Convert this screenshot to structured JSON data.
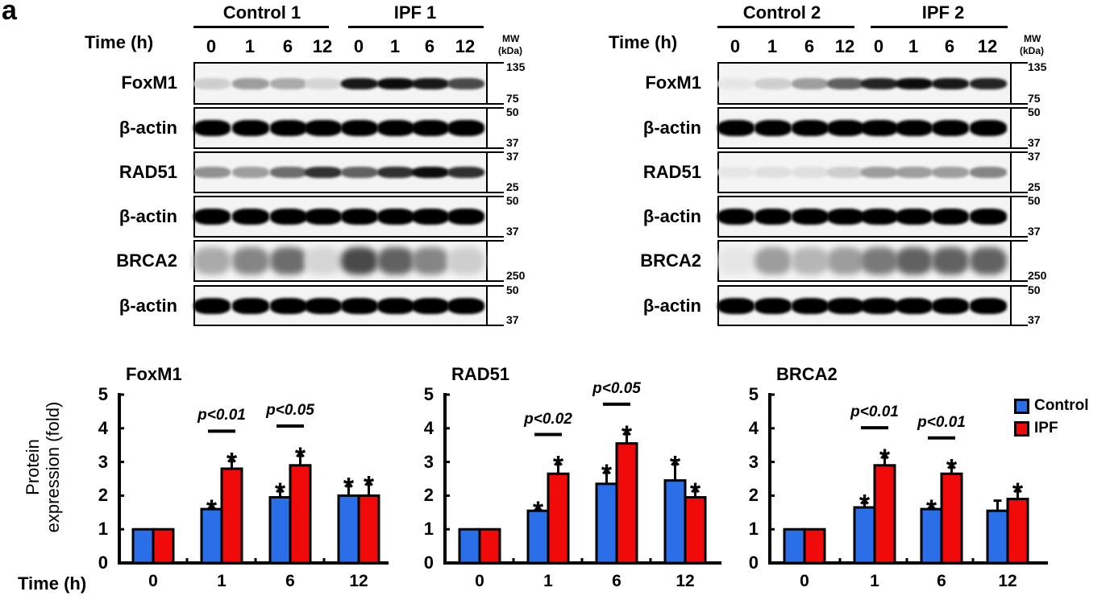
{
  "panel_letter": "a",
  "blots": {
    "time_label": "Time (h)",
    "mw_label": [
      "MW",
      "(kDa)"
    ],
    "lanes": [
      "0",
      "1",
      "6",
      "12",
      "0",
      "1",
      "6",
      "12"
    ],
    "rows": [
      "FoxM1",
      "β-actin",
      "RAD51",
      "β-actin",
      "BRCA2",
      "β-actin"
    ],
    "mw_markers": [
      [
        "135",
        "75"
      ],
      [
        "50",
        "37"
      ],
      [
        "37",
        "25"
      ],
      [
        "50",
        "37"
      ],
      [
        "",
        "250"
      ],
      [
        "50",
        "37"
      ]
    ],
    "left": {
      "groups": [
        "Control 1",
        "IPF 1"
      ],
      "band_intensity": [
        [
          0.15,
          0.35,
          0.3,
          0.12,
          0.9,
          0.95,
          0.9,
          0.7
        ],
        [
          1,
          1,
          1,
          1,
          1,
          1,
          1,
          1
        ],
        [
          0.4,
          0.35,
          0.55,
          0.8,
          0.6,
          0.8,
          0.95,
          0.8
        ],
        [
          1,
          1,
          1,
          1,
          1,
          1,
          1,
          1
        ],
        [
          0.3,
          0.45,
          0.55,
          0.12,
          0.7,
          0.6,
          0.45,
          0.15
        ],
        [
          1,
          1,
          1,
          1,
          1,
          1,
          1,
          1
        ]
      ]
    },
    "right": {
      "groups": [
        "Control 2",
        "IPF 2"
      ],
      "band_intensity": [
        [
          0.05,
          0.15,
          0.35,
          0.6,
          0.85,
          0.95,
          0.9,
          0.85
        ],
        [
          1,
          1,
          1,
          1,
          1,
          1,
          1,
          1
        ],
        [
          0.05,
          0.08,
          0.08,
          0.15,
          0.35,
          0.35,
          0.35,
          0.45
        ],
        [
          1,
          1,
          1,
          1,
          1,
          1,
          1,
          1
        ],
        [
          0.05,
          0.35,
          0.25,
          0.35,
          0.5,
          0.6,
          0.6,
          0.6
        ],
        [
          1,
          1,
          1,
          1,
          1,
          1,
          1,
          1
        ]
      ]
    }
  },
  "colors": {
    "Control": "#2a6fe8",
    "IPF": "#f00a0a"
  },
  "legend": [
    "Control",
    "IPF"
  ],
  "ylabel": [
    "Protein",
    "expression (fold)"
  ],
  "xlabel": "Time (h)",
  "chart_data": [
    {
      "type": "bar",
      "title": "FoxM1",
      "categories": [
        "0",
        "1",
        "6",
        "12"
      ],
      "ylim": [
        0,
        5
      ],
      "yticks": [
        "0",
        "1",
        "2",
        "3",
        "4",
        "5"
      ],
      "series": [
        {
          "name": "Control",
          "values": [
            1,
            1.6,
            1.95,
            2.0
          ],
          "errors": [
            0,
            0.15,
            0.3,
            0.4
          ],
          "significant": [
            false,
            true,
            true,
            true
          ]
        },
        {
          "name": "IPF",
          "values": [
            1,
            2.8,
            2.9,
            2.0
          ],
          "errors": [
            0,
            0.35,
            0.4,
            0.45
          ],
          "significant": [
            false,
            true,
            true,
            true
          ]
        }
      ],
      "annotations": [
        {
          "category": "1",
          "text": "p<0.01"
        },
        {
          "category": "6",
          "text": "p<0.05"
        }
      ]
    },
    {
      "type": "bar",
      "title": "RAD51",
      "categories": [
        "0",
        "1",
        "6",
        "12"
      ],
      "ylim": [
        0,
        5
      ],
      "yticks": [
        "0",
        "1",
        "2",
        "3",
        "4",
        "5"
      ],
      "series": [
        {
          "name": "Control",
          "values": [
            1,
            1.55,
            2.35,
            2.45
          ],
          "errors": [
            0,
            0.15,
            0.45,
            0.6
          ],
          "significant": [
            false,
            true,
            true,
            true
          ]
        },
        {
          "name": "IPF",
          "values": [
            1,
            2.65,
            3.55,
            1.95
          ],
          "errors": [
            0,
            0.4,
            0.4,
            0.3
          ],
          "significant": [
            false,
            true,
            true,
            true
          ]
        }
      ],
      "annotations": [
        {
          "category": "1",
          "text": "p<0.02"
        },
        {
          "category": "6",
          "text": "p<0.05"
        }
      ]
    },
    {
      "type": "bar",
      "title": "BRCA2",
      "categories": [
        "0",
        "1",
        "6",
        "12"
      ],
      "ylim": [
        0,
        5
      ],
      "yticks": [
        "0",
        "1",
        "2",
        "3",
        "4",
        "5"
      ],
      "series": [
        {
          "name": "Control",
          "values": [
            1,
            1.65,
            1.6,
            1.55
          ],
          "errors": [
            0,
            0.25,
            0.15,
            0.3
          ],
          "significant": [
            false,
            true,
            true,
            false
          ]
        },
        {
          "name": "IPF",
          "values": [
            1,
            2.9,
            2.65,
            1.9
          ],
          "errors": [
            0,
            0.35,
            0.3,
            0.35
          ],
          "significant": [
            false,
            true,
            true,
            true
          ]
        }
      ],
      "annotations": [
        {
          "category": "1",
          "text": "p<0.01"
        },
        {
          "category": "6",
          "text": "p<0.01"
        }
      ]
    }
  ]
}
